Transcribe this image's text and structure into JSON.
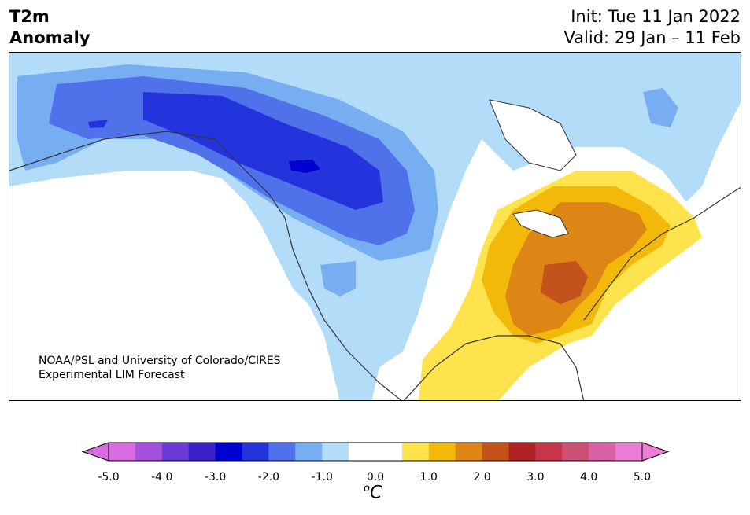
{
  "header": {
    "title_line1": "T2m",
    "title_line2": "Anomaly",
    "init": "Init: Tue 11 Jan 2022",
    "valid": "Valid: 29 Jan – 11 Feb"
  },
  "credit": {
    "line1": "NOAA/PSL and University of Colorado/CIRES",
    "line2": "Experimental LIM Forecast"
  },
  "colorbar": {
    "ticks": [
      "-5.0",
      "-4.0",
      "-3.0",
      "-2.0",
      "-1.0",
      "0.0",
      "1.0",
      "2.0",
      "3.0",
      "4.0",
      "5.0"
    ],
    "unit_base": "C",
    "unit_sup": "o",
    "colors": [
      "#d96be0",
      "#a551dd",
      "#6b3bd9",
      "#3c20c9",
      "#0000d2",
      "#2434dc",
      "#4f72ea",
      "#77aef2",
      "#b3dcf8",
      "#ffffff",
      "#ffffff",
      "#ffe34d",
      "#f2b80a",
      "#de8615",
      "#c4531b",
      "#b02325",
      "#c63648",
      "#cf5076",
      "#db61a6",
      "#ec7cd4"
    ]
  },
  "map": {
    "colors": {
      "deep_blue": "#0000d2",
      "blue": "#2434dc",
      "mid_blue": "#4f72ea",
      "light_blue": "#77aef2",
      "pale_blue": "#b3dcf8",
      "yellow": "#ffe34d",
      "gold": "#f2b80a",
      "orange": "#de8615",
      "dark_orange": "#c4531b",
      "coast": "#333333"
    }
  }
}
